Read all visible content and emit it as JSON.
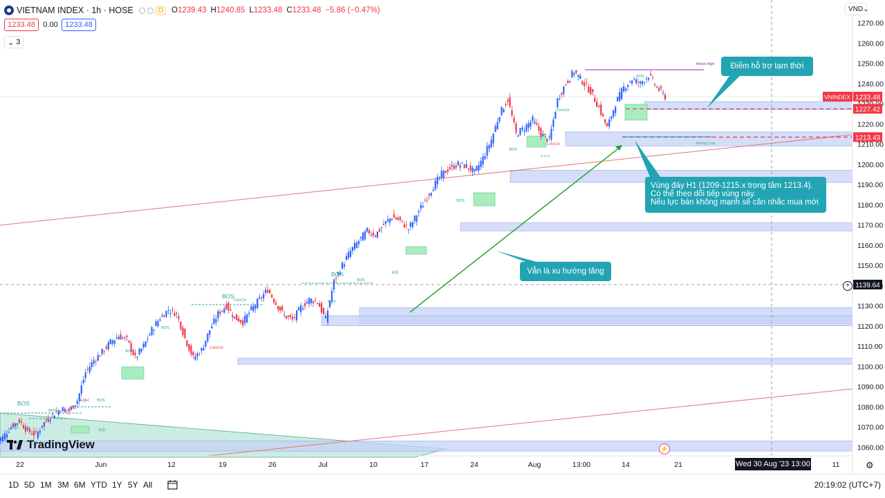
{
  "header": {
    "symbol_title": "VIETNAM INDEX · 1h · HOSE",
    "data_badge": "D",
    "ohlc": {
      "o_label": "O",
      "o": "1239.43",
      "h_label": "H",
      "h": "1240.85",
      "l_label": "L",
      "l": "1233.48",
      "c_label": "C",
      "c": "1233.48",
      "change": "−5.86 (−0.47%)"
    },
    "sell_price": "1233.48",
    "spread": "0.00",
    "buy_price": "1233.48",
    "indicator_count": "3",
    "currency": "VND",
    "logo_text": "TradingView"
  },
  "bottom": {
    "timeframes": [
      "1D",
      "5D",
      "1M",
      "3M",
      "6M",
      "YTD",
      "1Y",
      "5Y",
      "All"
    ],
    "clock": "20:19:02 (UTC+7)",
    "cursor_date": "Wed 30 Aug '23   13:00"
  },
  "colors": {
    "up": "#2962ff",
    "down": "#f23645",
    "zone": "#c5d3f5",
    "demand": "#a8ecc0",
    "trend": "#2ba02d",
    "channel": "#e57373",
    "callout": "#22a4b4"
  },
  "chart_data": {
    "type": "line",
    "series": [
      {
        "values": [
          1065,
          1070,
          1073,
          1068,
          1066,
          1072,
          1076,
          1079,
          1078,
          1083,
          1097,
          1103,
          1107,
          1112,
          1115,
          1113,
          1104,
          1110,
          1118,
          1124,
          1128,
          1126,
          1114,
          1104,
          1108,
          1118,
          1126,
          1130,
          1124,
          1122,
          1128,
          1133,
          1138,
          1131,
          1125,
          1123,
          1129,
          1133,
          1132,
          1123,
          1142,
          1150,
          1157,
          1162,
          1167,
          1165,
          1170,
          1174,
          1172,
          1168,
          1175,
          1182,
          1189,
          1195,
          1198,
          1200,
          1199,
          1196,
          1203,
          1212,
          1225,
          1232,
          1215,
          1218,
          1222,
          1215,
          1212,
          1232,
          1240,
          1246,
          1241,
          1236,
          1228,
          1218,
          1230,
          1238,
          1242,
          1240,
          1244,
          1238,
          1233.48
        ]
      }
    ],
    "y_ticks": [
      "1270.00",
      "1260.00",
      "1250.00",
      "1240.00",
      "1230.00",
      "1220.00",
      "1210.00",
      "1200.00",
      "1190.00",
      "1180.00",
      "1170.00",
      "1160.00",
      "1150.00",
      "1140.00",
      "1130.00",
      "1120.00",
      "1110.00",
      "1100.00",
      "1090.00",
      "1080.00",
      "1070.00",
      "1060.00"
    ],
    "x_ticks": [
      "22",
      "Jun",
      "12",
      "19",
      "26",
      "Jul",
      "10",
      "17",
      "24",
      "Aug",
      "13:00",
      "14",
      "21",
      "11"
    ],
    "price_labels": [
      {
        "text": "VNINDEX",
        "value": "1233.48",
        "color": "#f23645"
      },
      {
        "text": "",
        "value": "1227.42",
        "color": "#f23645"
      },
      {
        "text": "",
        "value": "1213.43",
        "color": "#f23645"
      },
      {
        "text": "",
        "value": "1139.64",
        "color": "#131722"
      }
    ],
    "structure_labels": [
      "BOS",
      "BOS",
      "EQH",
      "BOS",
      "EQL",
      "BOS",
      "BOS",
      "BOS",
      "CHoCH",
      "CHoCH",
      "BOS",
      "BOS",
      "BOS",
      "EQL",
      "BOS",
      "BOS",
      "CHoCH",
      "CHoCH",
      "BOS",
      "Weak High",
      "Strong Low"
    ],
    "annotations": [
      {
        "id": "support",
        "text": "Điểm hỗ trợ tạm thời"
      },
      {
        "id": "zone",
        "lines": [
          "Vùng đáy H1 (1209-1215.x trọng tâm 1213.4).",
          "Có thể theo dõi tiếp vùng này.",
          "Nếu lực bán không mạnh sẽ cân nhắc mua mới"
        ]
      },
      {
        "id": "trend",
        "text": "Vẫn là xu hướng tăng"
      }
    ]
  }
}
